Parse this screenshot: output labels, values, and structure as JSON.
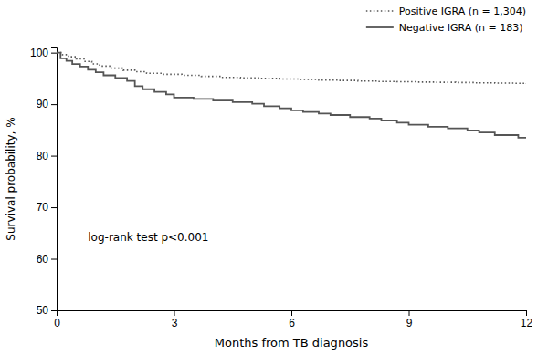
{
  "chart_data": {
    "type": "step",
    "xlabel": "Months from TB diagnosis",
    "ylabel": "Survival probability, %",
    "xlim": [
      0,
      12
    ],
    "ylim": [
      50,
      101
    ],
    "xticks": [
      0,
      3,
      6,
      9,
      12
    ],
    "yticks": [
      50,
      60,
      70,
      80,
      90,
      100
    ],
    "grid": false,
    "legend": "upper-right",
    "annotations": [
      {
        "text": "log-rank test p<0.001",
        "x": 0.8,
        "y": 63.5
      }
    ],
    "series": [
      {
        "name": "Positive IGRA (n = 1,304)",
        "color": "#555555",
        "line_style": "dotted",
        "x": [
          0,
          0.15,
          0.3,
          0.5,
          0.7,
          0.9,
          1.1,
          1.4,
          1.7,
          2.0,
          2.3,
          2.7,
          3.2,
          3.7,
          4.2,
          4.7,
          5.2,
          5.7,
          6.2,
          6.7,
          7.2,
          7.7,
          8.2,
          8.7,
          9.2,
          9.7,
          10.2,
          10.7,
          11.2,
          11.7,
          12.0
        ],
        "values": [
          100,
          99.6,
          99.2,
          98.8,
          98.3,
          97.8,
          97.4,
          97.0,
          96.6,
          96.3,
          96.0,
          95.8,
          95.6,
          95.4,
          95.2,
          95.1,
          95.0,
          94.9,
          94.8,
          94.7,
          94.6,
          94.5,
          94.4,
          94.35,
          94.3,
          94.25,
          94.2,
          94.15,
          94.1,
          94.05,
          93.9
        ]
      },
      {
        "name": "Negative IGRA (n = 183)",
        "color": "#555555",
        "line_style": "solid",
        "x": [
          0,
          0.1,
          0.25,
          0.4,
          0.6,
          0.8,
          1.0,
          1.2,
          1.5,
          1.8,
          2.0,
          2.2,
          2.5,
          2.8,
          3.0,
          3.5,
          4.0,
          4.5,
          5.0,
          5.3,
          5.7,
          6.0,
          6.3,
          6.7,
          7.0,
          7.5,
          8.0,
          8.3,
          8.7,
          9.0,
          9.5,
          10.0,
          10.5,
          10.8,
          11.2,
          11.5,
          11.8,
          12.0
        ],
        "values": [
          100,
          98.9,
          98.4,
          97.8,
          97.3,
          96.7,
          96.2,
          95.6,
          95.1,
          94.5,
          93.5,
          92.9,
          92.4,
          91.9,
          91.3,
          91.0,
          90.7,
          90.4,
          90.1,
          89.6,
          89.2,
          88.8,
          88.5,
          88.2,
          87.9,
          87.5,
          87.2,
          86.8,
          86.4,
          86.0,
          85.6,
          85.3,
          84.9,
          84.5,
          84.0,
          84.0,
          83.5,
          83.5
        ]
      }
    ]
  }
}
